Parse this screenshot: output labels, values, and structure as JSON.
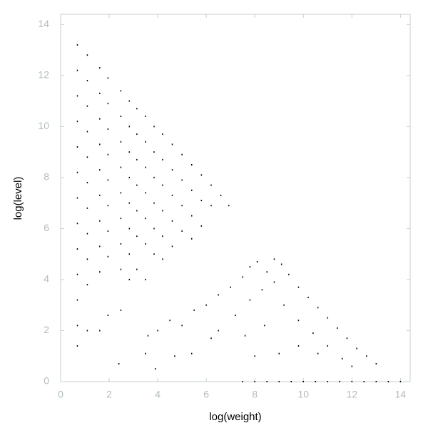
{
  "chart_data": {
    "type": "scatter",
    "xlabel": "log(weight)",
    "ylabel": "log(level)",
    "xlim": [
      0,
      14.4
    ],
    "ylim": [
      0,
      14.4
    ],
    "xticks": [
      0,
      2,
      4,
      6,
      8,
      10,
      12,
      14
    ],
    "yticks": [
      0,
      2,
      4,
      6,
      8,
      10,
      12,
      14
    ],
    "color": "#000000",
    "x": [
      0.69,
      0.69,
      0.69,
      0.69,
      0.69,
      0.69,
      0.69,
      0.69,
      0.69,
      0.69,
      0.69,
      0.69,
      0.69,
      1.1,
      1.1,
      1.1,
      1.1,
      1.1,
      1.1,
      1.1,
      1.1,
      1.1,
      1.1,
      1.1,
      1.61,
      1.61,
      1.61,
      1.61,
      1.61,
      1.61,
      1.61,
      1.61,
      1.61,
      1.61,
      1.95,
      1.95,
      1.95,
      1.95,
      1.95,
      1.95,
      1.95,
      1.95,
      1.95,
      2.48,
      2.48,
      2.48,
      2.48,
      2.48,
      2.48,
      2.48,
      2.48,
      2.48,
      2.83,
      2.83,
      2.83,
      2.83,
      2.83,
      2.83,
      2.83,
      2.83,
      3.14,
      3.14,
      3.14,
      3.14,
      3.14,
      3.14,
      3.14,
      3.5,
      3.5,
      3.5,
      3.5,
      3.5,
      3.5,
      3.5,
      3.85,
      3.85,
      3.85,
      3.85,
      3.85,
      3.85,
      4.2,
      4.2,
      4.2,
      4.2,
      4.2,
      4.2,
      4.6,
      4.6,
      4.6,
      4.6,
      4.6,
      5,
      5,
      5,
      5,
      5.4,
      5.4,
      5.4,
      5.4,
      5.8,
      5.8,
      5.8,
      6.2,
      6.2,
      6.6,
      6.93,
      7.5,
      8,
      8.5,
      9,
      9.5,
      10,
      10.5,
      11,
      11.5,
      12,
      12.5,
      13,
      13.5,
      14,
      2.4,
      3.6,
      4,
      4.5,
      5,
      5.5,
      6,
      6.5,
      7,
      7.5,
      7.8,
      8.1,
      8.5,
      8.8,
      9.1,
      9.4,
      9.8,
      10.2,
      10.6,
      11,
      11.4,
      11.8,
      12.2,
      12.6,
      13,
      6.5,
      7.2,
      7.8,
      8.3,
      8.8,
      9.2,
      9.8,
      10.4,
      11,
      7.6,
      8.4,
      9,
      9.8,
      10.6,
      11.6,
      5.4,
      6.2,
      8,
      12,
      4.7,
      3.5,
      3.9
    ],
    "values": [
      13.2,
      12.2,
      11.2,
      10.2,
      9.2,
      8.2,
      7.2,
      6.2,
      5.2,
      4.2,
      3.2,
      2.2,
      1.4,
      12.8,
      11.8,
      10.8,
      9.8,
      8.8,
      7.8,
      6.8,
      5.8,
      4.8,
      3.8,
      2,
      12.3,
      11.3,
      10.3,
      9.3,
      8.3,
      7.3,
      6.3,
      5.3,
      4.3,
      2,
      11.9,
      10.9,
      9.9,
      8.9,
      7.9,
      6.9,
      5.9,
      4.9,
      2.6,
      11.4,
      10.4,
      9.4,
      8.4,
      7.4,
      6.4,
      5.4,
      4.4,
      2.8,
      11,
      10,
      9,
      8,
      7,
      6,
      5,
      4,
      10.7,
      9.7,
      8.7,
      7.7,
      6.7,
      5.7,
      4.4,
      10.4,
      9.4,
      8.4,
      7.4,
      6.4,
      5.4,
      4,
      10,
      9,
      8,
      7,
      6,
      5,
      9.7,
      8.7,
      7.7,
      6.7,
      5.7,
      4.8,
      9.3,
      8.3,
      7.3,
      6.3,
      5.3,
      8.9,
      7.9,
      6.9,
      5.9,
      8.5,
      7.5,
      6.5,
      5.6,
      8.1,
      7.1,
      6.1,
      7.7,
      6.9,
      7.3,
      6.9,
      0,
      0,
      0,
      0,
      0,
      0,
      0,
      0,
      0,
      0,
      0,
      0,
      0,
      0,
      0.7,
      1.8,
      2,
      2.4,
      2.2,
      2.8,
      3,
      3.4,
      3.7,
      4.1,
      4.5,
      4.7,
      4.3,
      4.8,
      4.6,
      4.2,
      3.7,
      3.3,
      2.9,
      2.5,
      2.1,
      1.7,
      1.3,
      1,
      0.7,
      2,
      2.6,
      3.2,
      3.6,
      3.9,
      3,
      2.4,
      1.9,
      1.4,
      1.8,
      2.2,
      1.1,
      1.4,
      1.1,
      0.9,
      1.1,
      1.7,
      1,
      0.6,
      1,
      1.1,
      0.5
    ]
  }
}
